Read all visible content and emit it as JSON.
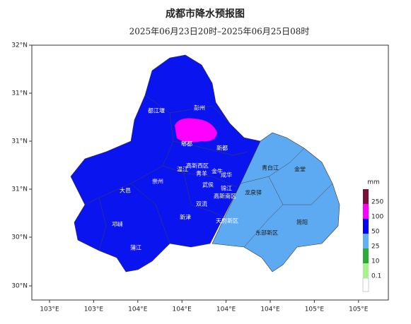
{
  "header": {
    "title": "成都市降水预报图",
    "subtitle": "2025年06月23日20时–2025年06月25日08时"
  },
  "axes": {
    "y_labels": [
      "32°N",
      "31°N",
      "31°N",
      "31°N",
      "30°N",
      "30°N"
    ],
    "x_labels": [
      "103°E",
      "103°E",
      "104°E",
      "104°E",
      "104°E",
      "104°E",
      "105°E",
      "105°E"
    ]
  },
  "places": [
    "彭州",
    "都江堰",
    "郫都",
    "新都",
    "温江",
    "高新西区",
    "青羊",
    "金牛",
    "成华",
    "崇州",
    "武侯",
    "锦江",
    "高新南区",
    "大邑",
    "双流",
    "龙泉驿",
    "青白江",
    "金堂",
    "新津",
    "天府新区",
    "邛崃",
    "东部新区",
    "简阳",
    "蒲江"
  ],
  "legend": {
    "unit": "mm",
    "levels": [
      {
        "value": 250,
        "color": "#7a0f3a"
      },
      {
        "value": 100,
        "color": "#ff00ff"
      },
      {
        "value": 50,
        "color": "#0000ff"
      },
      {
        "value": 25,
        "color": "#61b0f5"
      },
      {
        "value": 10,
        "color": "#2eaa3a"
      },
      {
        "value": 0.1,
        "color": "#a6f28f"
      }
    ]
  }
}
